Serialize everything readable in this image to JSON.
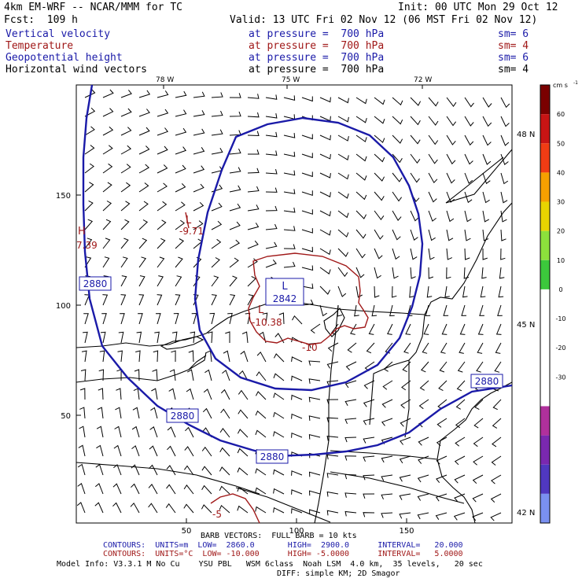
{
  "header": {
    "model": "4km EM-WRF -- NCAR/MMM for TC",
    "init": "Init: 00 UTC Mon 29 Oct 12",
    "fcst": "Fcst:  109 h",
    "valid": "Valid: 13 UTC Fri 02 Nov 12 (06 MST Fri 02 Nov 12)"
  },
  "fields": [
    {
      "name": "Vertical velocity",
      "level": "at pressure =  700 hPa",
      "sm": "sm= 6",
      "color": "#1a1aa8"
    },
    {
      "name": "Temperature",
      "level": "at pressure =  700 hPa",
      "sm": "sm= 4",
      "color": "#a01818"
    },
    {
      "name": "Geopotential height",
      "level": "at pressure =  700 hPa",
      "sm": "sm= 6",
      "color": "#1a1aa8"
    },
    {
      "name": "Horizontal wind vectors",
      "level": "at pressure =  700 hPa",
      "sm": "sm= 4",
      "color": "#000000"
    }
  ],
  "lon_labels": [
    "78 W",
    "75 W",
    "72 W"
  ],
  "lat_labels": [
    "48 N",
    "45 N",
    "42 N"
  ],
  "y_ticks": [
    "150",
    "100",
    "50"
  ],
  "x_ticks": [
    "50",
    "100",
    "150"
  ],
  "colorbar": {
    "unit": "cm s",
    "unit_exp": "-1",
    "labels": [
      "60",
      "50",
      "40",
      "30",
      "20",
      "10",
      "0",
      "-10",
      "-20",
      "-30"
    ],
    "colors": [
      "#7a0000",
      "#c81414",
      "#f03c14",
      "#f5a000",
      "#e8d400",
      "#8ce03c",
      "#3cc83c",
      "#ffffff",
      "#ffffff",
      "#ffffff",
      "#ffffff",
      "#b0309c",
      "#7a28b0",
      "#5038c0",
      "#7a90f0"
    ]
  },
  "map_labels": {
    "contour_2880_a": "2880",
    "contour_2880_b": "2880",
    "contour_2880_c": "2880",
    "contour_2880_d": "2880",
    "low_letter": "L",
    "low_value": "2842",
    "temp_low_letter": "L",
    "temp_low_value": "-10.38",
    "temp_10": "-10",
    "temp_l_left": "L",
    "temp_val_left": "-9.71",
    "h_letter": "H",
    "h_value": "7.39",
    "temp_minus5": "-5"
  },
  "footer": {
    "barb": "BARB VECTORS:  FULL BARB = 10 kts",
    "contours_m": "CONTOURS:  UNITS=m  LOW=  2860.0       HIGH=  2900.0      INTERVAL=   20.000",
    "contours_c": "CONTOURS:  UNITS=°C  LOW= -10.000      HIGH= -5.0000      INTERVAL=   5.0000",
    "model_info": "Model Info: V3.3.1 M No Cu    YSU PBL   WSM 6class  Noah LSM  4.0 km,  35 levels,   20 sec",
    "diff": "DIFF: simple KM; 2D Smagor"
  }
}
